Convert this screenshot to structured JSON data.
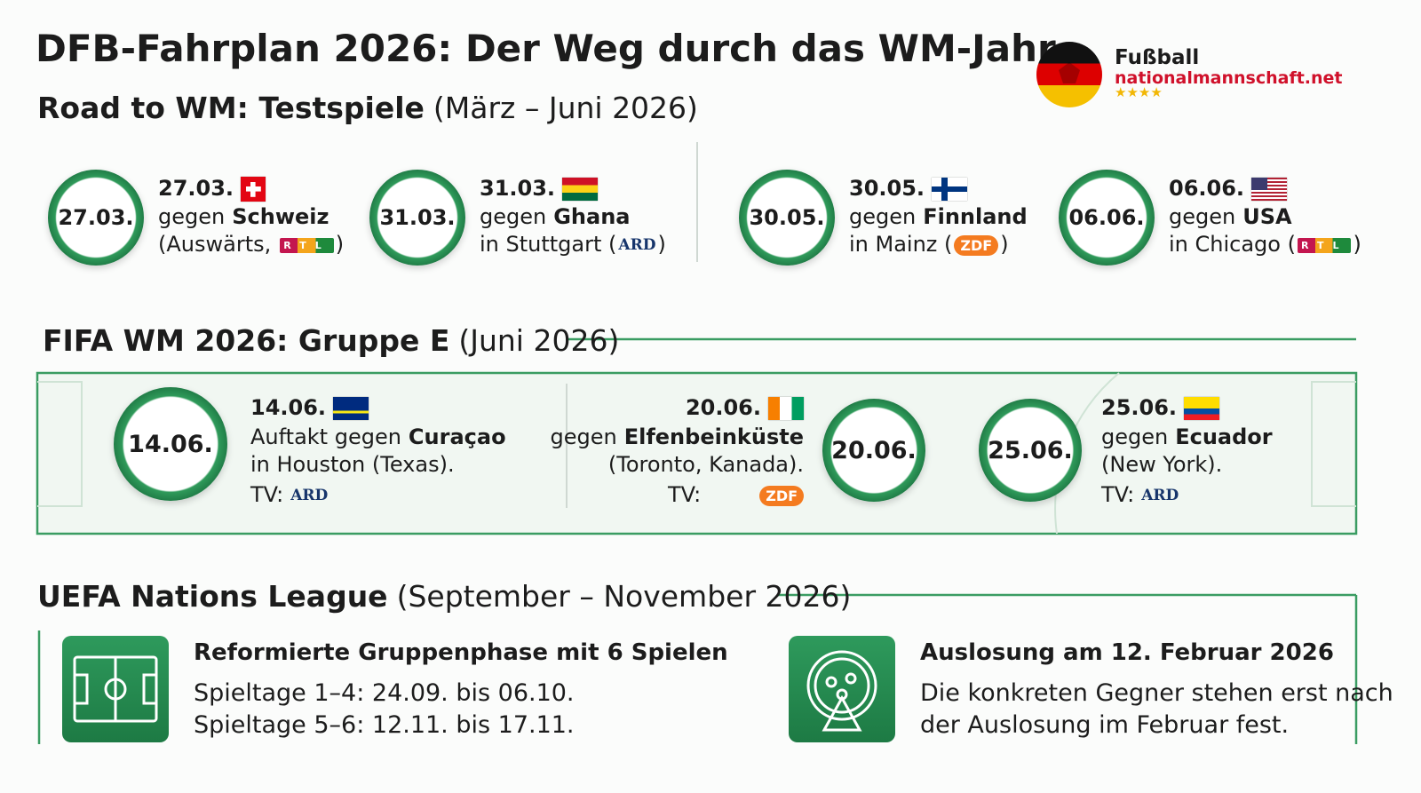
{
  "header": {
    "title": "DFB-Fahrplan 2026: Der Weg durch das WM-Jahr",
    "logo": {
      "line1": "Fußball",
      "line2": "nationalmannschaft.net"
    }
  },
  "testspiele": {
    "title": "Road to WM: Testspiele",
    "subtitle": "(März – Juni 2026)",
    "matches": [
      {
        "circle": "27.03.",
        "date": "27.03.",
        "line2": [
          "gegen",
          "Schweiz"
        ],
        "line3": "(Auswärts,",
        "tv": "RTL",
        "close": ")"
      },
      {
        "circle": "31.03.",
        "date": "31.03.",
        "line2": [
          "gegen",
          "Ghana"
        ],
        "line3": "in Stuttgart (",
        "tv": "ARD",
        "close": ")"
      },
      {
        "circle": "30.05.",
        "date": "30.05.",
        "line2": [
          "gegen",
          "Finnland"
        ],
        "line3": "in Mainz (",
        "tv": "ZDF",
        "close": ")"
      },
      {
        "circle": "06.06.",
        "date": "06.06.",
        "line2": [
          "gegen",
          "USA"
        ],
        "line3": "in Chicago (",
        "tv": "RTL",
        "close": ")"
      }
    ]
  },
  "gruppe": {
    "title": "FIFA WM 2026: Gruppe E",
    "subtitle": "(Juni 2026)",
    "matches": [
      {
        "circle": "14.06.",
        "date": "14.06.",
        "line2": [
          "Auftakt gegen",
          "Curaçao"
        ],
        "line3": "in Houston (Texas).",
        "tv_label": "TV:",
        "tv": "ARD"
      },
      {
        "circle": "20.06.",
        "date": "20.06.",
        "line2": [
          "gegen",
          "Elfenbeinküste"
        ],
        "line3": "(Toronto, Kanada).",
        "tv_label": "TV:",
        "tv": "ZDF"
      },
      {
        "circle": "25.06.",
        "date": "25.06.",
        "line2": [
          "gegen",
          "Ecuador"
        ],
        "line3": "(New York).",
        "tv_label": "TV:",
        "tv": "ARD"
      }
    ]
  },
  "nations_league": {
    "title": "UEFA Nations League",
    "subtitle": "(September – November 2026)",
    "cards": [
      {
        "title": "Reformierte Gruppenphase mit 6 Spielen",
        "lines": [
          "Spieltage 1–4: 24.09. bis 06.10.",
          "Spieltage 5–6: 12.11. bis 17.11."
        ]
      },
      {
        "title": "Auslosung am 12. Februar 2026",
        "lines": [
          "Die konkreten Gegner stehen erst nach",
          "der Auslosung im Februar fest."
        ]
      }
    ]
  }
}
